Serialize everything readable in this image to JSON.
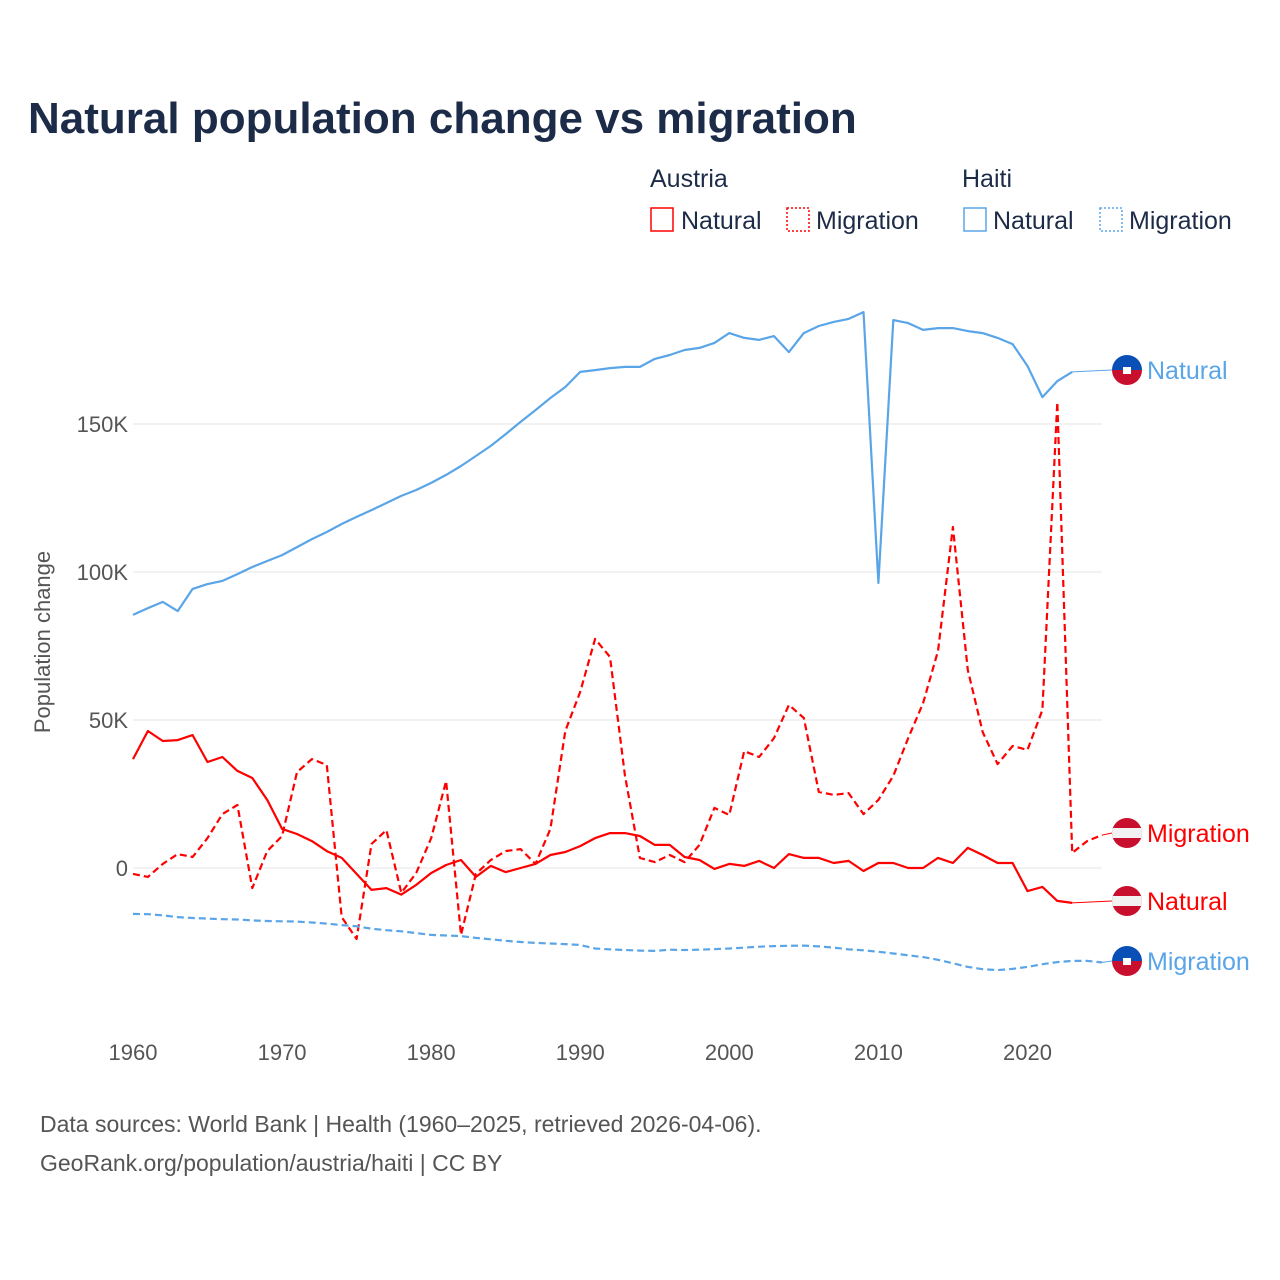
{
  "title": "Natural population change vs migration",
  "legend": {
    "groups": [
      {
        "name": "Austria",
        "color": "#ff0000",
        "items": [
          "Natural",
          "Migration"
        ]
      },
      {
        "name": "Haiti",
        "color": "#5aa5e8",
        "items": [
          "Natural",
          "Migration"
        ]
      }
    ]
  },
  "source": {
    "line1": "Data sources: World Bank | Health (1960–2025, retrieved 2026-04-06).",
    "line2": "GeoRank.org/population/austria/haiti | CC BY"
  },
  "chart_data": {
    "type": "line",
    "title": "Natural population change vs migration",
    "xlabel": "",
    "ylabel": "Population change",
    "xlim": [
      1960,
      2025
    ],
    "ylim": [
      -40000,
      195000
    ],
    "x_ticks": [
      1960,
      1970,
      1980,
      1990,
      2000,
      2010,
      2020
    ],
    "x_tick_labels": [
      "1960",
      "1970",
      "1980",
      "1990",
      "2000",
      "2010",
      "2020"
    ],
    "y_ticks": [
      0,
      50000,
      100000,
      150000
    ],
    "y_tick_labels": [
      "0",
      "50K",
      "100K",
      "150K"
    ],
    "grid": "horizontal",
    "legend_position": "top-right",
    "series": [
      {
        "name": "Austria Natural",
        "label": "Natural",
        "country": "Austria",
        "color": "#ff0000",
        "dash": "solid",
        "start_year": 1960,
        "values_thousands": [
          36.8,
          46.3,
          42.9,
          43.2,
          44.9,
          35.8,
          37.5,
          32.8,
          30.4,
          23,
          13.2,
          11.5,
          9.1,
          5.7,
          3.4,
          -2,
          -7.4,
          -6.8,
          -9,
          -5.7,
          -1.7,
          1,
          2.7,
          -3,
          0.7,
          -1.4,
          0,
          1.4,
          4.4,
          5.4,
          7.4,
          10.1,
          11.8,
          11.8,
          10.8,
          7.8,
          7.8,
          3.7,
          2.7,
          -0.3,
          1.4,
          0.7,
          2.4,
          0,
          4.7,
          3.4,
          3.4,
          1.7,
          2.4,
          -1,
          1.7,
          1.7,
          0,
          0,
          3.4,
          1.7,
          6.8,
          4.4,
          1.7,
          1.7,
          -7.8,
          -6.4,
          -11.1,
          -11.8
        ]
      },
      {
        "name": "Austria Migration",
        "label": "Migration",
        "country": "Austria",
        "color": "#ff0000",
        "dash": "dashed",
        "start_year": 1960,
        "values_thousands": [
          -2,
          -3,
          1.4,
          4.7,
          3.7,
          10.1,
          18.2,
          21.3,
          -6.8,
          5.7,
          10.8,
          32.4,
          36.8,
          34.8,
          -16.6,
          -24,
          8.1,
          12.8,
          -8.4,
          -1.7,
          10.1,
          29.4,
          -22.6,
          -2,
          2.7,
          5.7,
          6.4,
          1.4,
          13.2,
          46.3,
          59.5,
          77.4,
          71.3,
          31.1,
          3.4,
          2,
          4.4,
          2,
          7.8,
          20.3,
          17.9,
          39.5,
          37.5,
          43.9,
          55.1,
          50.7,
          25.7,
          24.7,
          25.3,
          18.2,
          23,
          31.1,
          43.9,
          55.7,
          73.3,
          115.2,
          66.9,
          45.9,
          35.1,
          41.2,
          39.9,
          53.4,
          157.4,
          5.1,
          9.1,
          11.1
        ]
      },
      {
        "name": "Haiti Natural",
        "label": "Natural",
        "country": "Haiti",
        "color": "#5aa5e8",
        "dash": "solid",
        "start_year": 1960,
        "values_thousands": [
          85.5,
          87.8,
          89.9,
          86.8,
          94.3,
          95.9,
          97.0,
          99.3,
          101.7,
          103.7,
          105.7,
          108.4,
          111.1,
          113.5,
          116.2,
          118.6,
          120.9,
          123.3,
          125.7,
          127.7,
          130.1,
          132.8,
          135.8,
          139.2,
          142.6,
          146.6,
          150.7,
          154.7,
          158.8,
          162.5,
          167.6,
          168.2,
          168.9,
          169.3,
          169.3,
          172.0,
          173.3,
          175.0,
          175.7,
          177.4,
          180.7,
          179.1,
          178.4,
          179.7,
          174.3,
          180.7,
          183.1,
          184.5,
          185.5,
          187.8,
          96.3,
          185.1,
          184.1,
          181.8,
          182.4,
          182.4,
          181.4,
          180.7,
          179.1,
          177.0,
          169.6,
          159.1,
          164.5,
          167.6
        ]
      },
      {
        "name": "Haiti Migration",
        "label": "Migration",
        "country": "Haiti",
        "color": "#5aa5e8",
        "dash": "dashed",
        "start_year": 1960,
        "values_thousands": [
          -15.5,
          -15.6,
          -16,
          -16.6,
          -16.9,
          -17.1,
          -17.3,
          -17.4,
          -17.7,
          -17.9,
          -18,
          -18.1,
          -18.4,
          -18.8,
          -19.3,
          -19.7,
          -20.5,
          -21,
          -21.4,
          -22,
          -22.6,
          -22.8,
          -23,
          -23.6,
          -24.1,
          -24.6,
          -25,
          -25.3,
          -25.5,
          -25.7,
          -26,
          -27.2,
          -27.5,
          -27.7,
          -27.9,
          -28,
          -27.6,
          -27.7,
          -27.6,
          -27.4,
          -27.2,
          -26.9,
          -26.6,
          -26.4,
          -26.3,
          -26.2,
          -26.5,
          -26.9,
          -27.5,
          -27.8,
          -28.3,
          -28.9,
          -29.5,
          -30.1,
          -31,
          -32.2,
          -33.4,
          -34.2,
          -34.5,
          -34.1,
          -33.4,
          -32.5,
          -31.8,
          -31.4,
          -31.4,
          -31.9
        ]
      }
    ],
    "end_labels": [
      "Natural",
      "Migration",
      "Natural",
      "Migration"
    ]
  }
}
